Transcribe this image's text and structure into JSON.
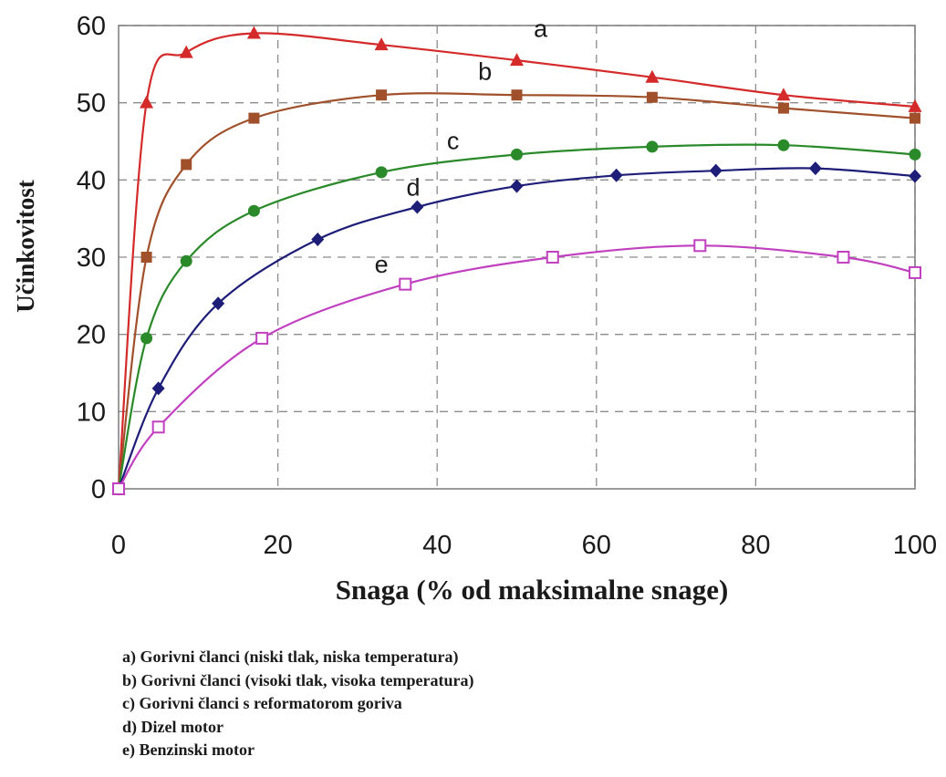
{
  "chart_data": {
    "type": "line",
    "xlabel": "Snaga (% od maksimalne snage)",
    "ylabel": "Učinkovitost",
    "xlim": [
      0,
      100
    ],
    "ylim": [
      0,
      60
    ],
    "x_ticks": [
      "0",
      "20",
      "40",
      "60",
      "80",
      "100"
    ],
    "y_ticks": [
      "0",
      "10",
      "20",
      "30",
      "40",
      "50",
      "60"
    ],
    "grid": "dashed",
    "series": [
      {
        "name": "a",
        "color": "#d42a2a",
        "marker": "triangle",
        "points": [
          [
            0,
            0
          ],
          [
            3.5,
            50
          ],
          [
            8.5,
            56.5
          ],
          [
            17,
            59
          ],
          [
            33,
            57.5
          ],
          [
            50,
            55.5
          ],
          [
            67,
            53.3
          ],
          [
            83.5,
            51
          ],
          [
            100,
            49.5
          ]
        ]
      },
      {
        "name": "b",
        "color": "#a0502a",
        "marker": "square",
        "points": [
          [
            0,
            0
          ],
          [
            3.5,
            30
          ],
          [
            8.5,
            42
          ],
          [
            17,
            48
          ],
          [
            33,
            51
          ],
          [
            50,
            51
          ],
          [
            67,
            50.7
          ],
          [
            83.5,
            49.3
          ],
          [
            100,
            48
          ]
        ]
      },
      {
        "name": "c",
        "color": "#2a8a2a",
        "marker": "circle",
        "points": [
          [
            0,
            0
          ],
          [
            3.5,
            19.5
          ],
          [
            8.5,
            29.5
          ],
          [
            17,
            36
          ],
          [
            33,
            41
          ],
          [
            50,
            43.3
          ],
          [
            67,
            44.3
          ],
          [
            83.5,
            44.5
          ],
          [
            100,
            43.3
          ]
        ]
      },
      {
        "name": "d",
        "color": "#1e1e78",
        "marker": "diamond",
        "points": [
          [
            0,
            0
          ],
          [
            5,
            13
          ],
          [
            12.5,
            24
          ],
          [
            25,
            32.3
          ],
          [
            37.5,
            36.5
          ],
          [
            50,
            39.2
          ],
          [
            62.5,
            40.6
          ],
          [
            75,
            41.2
          ],
          [
            87.5,
            41.5
          ],
          [
            100,
            40.5
          ]
        ]
      },
      {
        "name": "e",
        "color": "#c040c0",
        "marker": "open-square",
        "points": [
          [
            0,
            0
          ],
          [
            5,
            8
          ],
          [
            18,
            19.5
          ],
          [
            36,
            26.5
          ],
          [
            54.5,
            30
          ],
          [
            73,
            31.5
          ],
          [
            91,
            30
          ],
          [
            100,
            28
          ]
        ]
      }
    ],
    "curve_labels": [
      {
        "text": "a",
        "x": 53,
        "y": 58.5
      },
      {
        "text": "b",
        "x": 46,
        "y": 53
      },
      {
        "text": "c",
        "x": 42,
        "y": 44
      },
      {
        "text": "d",
        "x": 37,
        "y": 38
      },
      {
        "text": "e",
        "x": 33,
        "y": 28
      }
    ],
    "legend": [
      "a) Gorivni članci (niski tlak, niska temperatura)",
      "b) Gorivni članci (visoki tlak,  visoka temperatura)",
      "c) Gorivni članci s reformatorom goriva",
      "d) Dizel motor",
      "e) Benzinski motor"
    ]
  }
}
